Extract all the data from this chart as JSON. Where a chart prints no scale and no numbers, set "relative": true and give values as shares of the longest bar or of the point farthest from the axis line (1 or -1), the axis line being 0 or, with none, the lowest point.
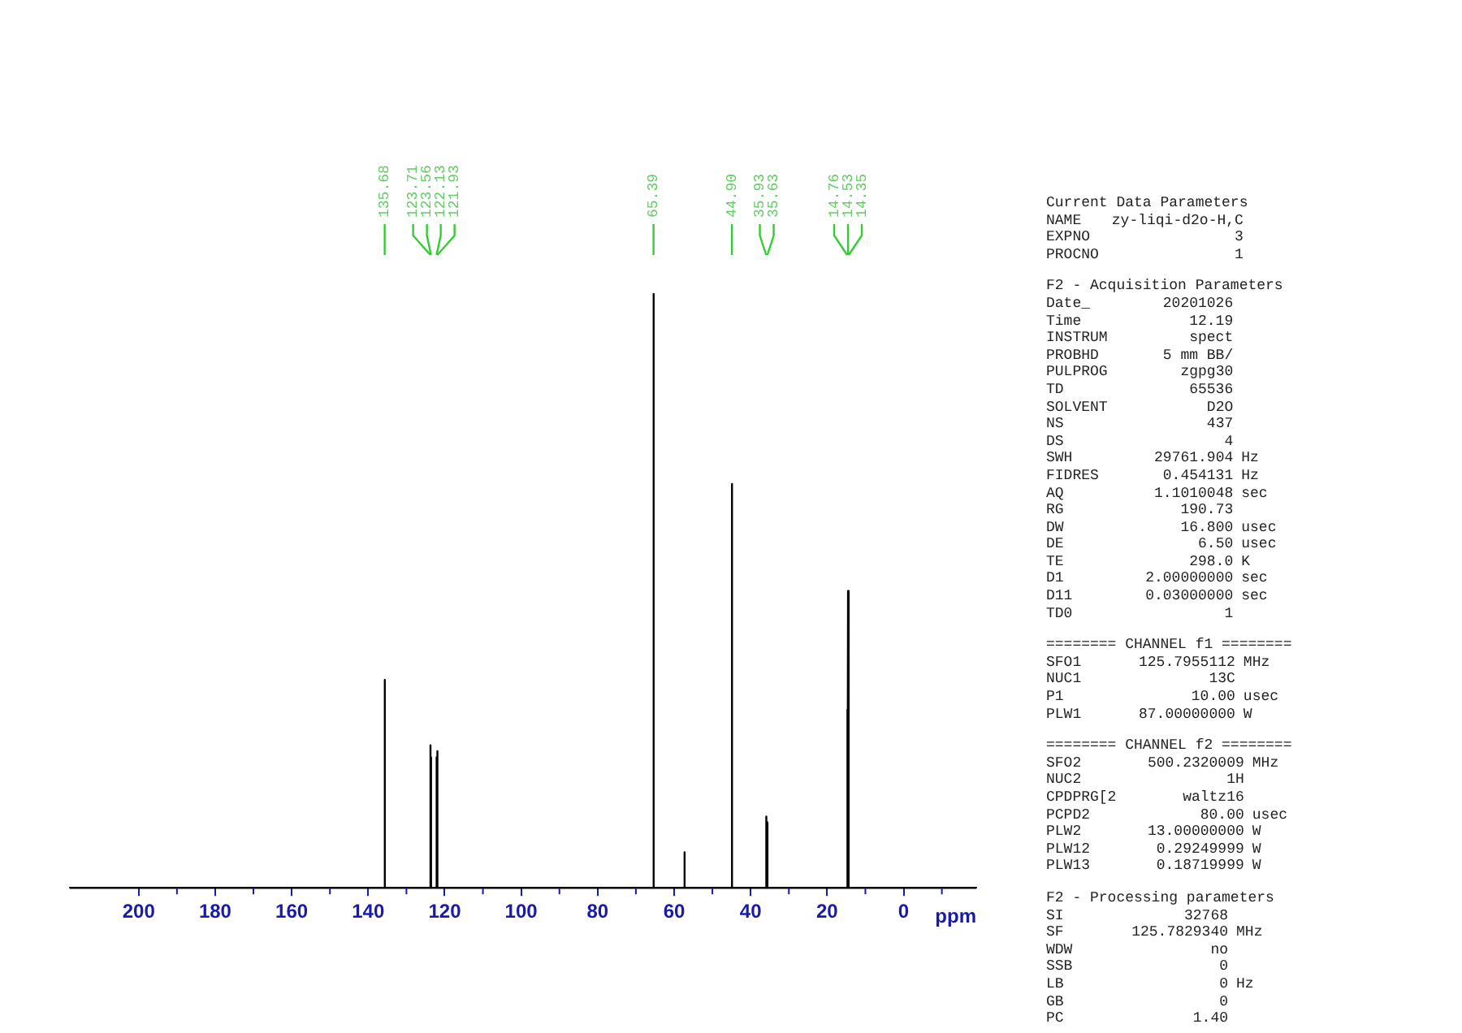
{
  "chart_data": {
    "type": "line",
    "xlabel": "ppm",
    "relative": true,
    "color": "#000000",
    "grid": false,
    "xlim": [
      218,
      -19
    ],
    "xticks": [
      200,
      {
        "value": 190,
        "label": null
      },
      180,
      {
        "value": 170,
        "label": null
      },
      160,
      {
        "value": 150,
        "label": null
      },
      140,
      {
        "value": 130,
        "label": null
      },
      120,
      {
        "value": 110,
        "label": null
      },
      100,
      {
        "value": 90,
        "label": null
      },
      80,
      {
        "value": 70,
        "label": null
      },
      60,
      {
        "value": 50,
        "label": null
      },
      40,
      {
        "value": 30,
        "label": null
      },
      20,
      {
        "value": 10,
        "label": null
      },
      0,
      {
        "value": -10,
        "label": null
      }
    ],
    "x": [
      218,
      135.74,
      135.68,
      135.62,
      123.77,
      123.71,
      123.65,
      123.62,
      123.56,
      123.5,
      122.19,
      122.13,
      122.07,
      121.99,
      121.93,
      121.87,
      65.45,
      65.39,
      65.33,
      57.36,
      57.3,
      57.24,
      44.96,
      44.9,
      44.84,
      35.99,
      35.93,
      35.87,
      35.69,
      35.63,
      35.57,
      14.82,
      14.76,
      14.7,
      14.59,
      14.53,
      14.47,
      14.41,
      14.35,
      14.29,
      -19
    ],
    "values": [
      0,
      0,
      0.35,
      0,
      0,
      0.24,
      0,
      0,
      0.22,
      0,
      0,
      0.22,
      0,
      0,
      0.23,
      0,
      0,
      1,
      0,
      0,
      0.06,
      0,
      0,
      0.68,
      0,
      0,
      0.12,
      0,
      0,
      0.11,
      0,
      0,
      0.3,
      0,
      0,
      0.5,
      0,
      0,
      0.3,
      0,
      0
    ],
    "annotations": [
      {
        "text": "135.68",
        "x": 135.68
      },
      {
        "text": "123.71",
        "x": 123.71
      },
      {
        "text": "123.56",
        "x": 123.56
      },
      {
        "text": "122.13",
        "x": 122.13
      },
      {
        "text": "121.93",
        "x": 121.93
      },
      {
        "text": "65.39",
        "x": 65.39
      },
      {
        "text": "44.90",
        "x": 44.9
      },
      {
        "text": "35.93",
        "x": 35.93
      },
      {
        "text": "35.63",
        "x": 35.63
      },
      {
        "text": "14.76",
        "x": 14.76
      },
      {
        "text": "14.53",
        "x": 14.53
      },
      {
        "text": "14.35",
        "x": 14.35
      },
      "Current Data Parameters\nNAME  zy-liqi-d2o-H,C\nEXPNO  3\nPROCNO  1",
      "F2 - Acquisition Parameters\nDate_  20201026\nTime  12.19\nINSTRUM  spect\nPROBHD  5 mm BB/\nPULPROG  zgpg30\nTD  65536\nSOLVENT  D2O\nNS  437\nDS  4\nSWH  29761.904  Hz\nFIDRES  0.454131  Hz\nAQ  1.1010048  sec\nRG  190.73\nDW  16.800  usec\nDE  6.50  usec\nTE  298.0  K\nD1  2.00000000  sec\nD11  0.03000000  sec\nTD0  1",
      "======== CHANNEL f1 ========\nSFO1  125.7955112  MHz\nNUC1  13C\nP1  10.00  usec\nPLW1  87.00000000  W",
      "======== CHANNEL f2 ========\nSFO2  500.2320009  MHz\nNUC2  1H\nCPDPRG[2  waltz16\nPCPD2  80.00  usec\nPLW2  13.00000000  W\nPLW12  0.29249999  W\nPLW13  0.18719999  W",
      "F2 - Processing parameters\nSI  32768\nSF  125.7829340  MHz\nWDW  no\nSSB  0\nLB  0  Hz\nGB  0\nPC  1.40"
    ]
  }
}
